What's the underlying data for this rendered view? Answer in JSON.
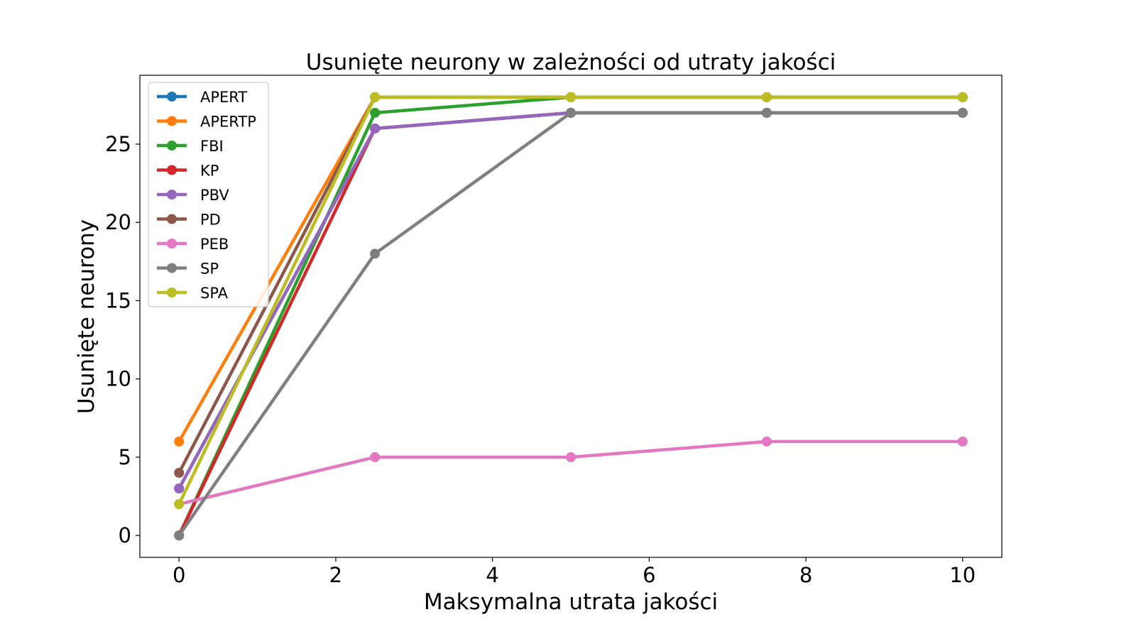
{
  "chart_data": {
    "type": "line",
    "title": "Usunięte neurony w zależności od utraty jakości",
    "xlabel": "Maksymalna utrata jakości",
    "ylabel": "Usunięte neurony",
    "x": [
      0,
      2.5,
      5,
      7.5,
      10
    ],
    "xlim": [
      -0.5,
      10.5
    ],
    "ylim": [
      -1.4,
      29.4
    ],
    "xticks": [
      "0",
      "2",
      "4",
      "6",
      "8",
      "10"
    ],
    "yticks": [
      "0",
      "5",
      "10",
      "15",
      "20",
      "25"
    ],
    "legend_position": "top-left",
    "grid": false,
    "series": [
      {
        "name": "APERT",
        "color": "#1f77b4",
        "values": [
          3,
          26,
          27,
          27,
          27
        ]
      },
      {
        "name": "APERTP",
        "color": "#ff7f0e",
        "values": [
          6,
          28,
          28,
          28,
          28
        ]
      },
      {
        "name": "FBI",
        "color": "#2ca02c",
        "values": [
          0,
          27,
          28,
          28,
          28
        ]
      },
      {
        "name": "KP",
        "color": "#d62728",
        "values": [
          0,
          26,
          27,
          27,
          27
        ]
      },
      {
        "name": "PBV",
        "color": "#9467bd",
        "values": [
          3,
          26,
          27,
          27,
          27
        ]
      },
      {
        "name": "PD",
        "color": "#8c564b",
        "values": [
          4,
          28,
          28,
          28,
          28
        ]
      },
      {
        "name": "PEB",
        "color": "#e377c2",
        "values": [
          2,
          5,
          5,
          6,
          6
        ]
      },
      {
        "name": "SP",
        "color": "#7f7f7f",
        "values": [
          0,
          18,
          27,
          27,
          27
        ]
      },
      {
        "name": "SPA",
        "color": "#bcbd22",
        "values": [
          2,
          28,
          28,
          28,
          28
        ]
      }
    ]
  }
}
